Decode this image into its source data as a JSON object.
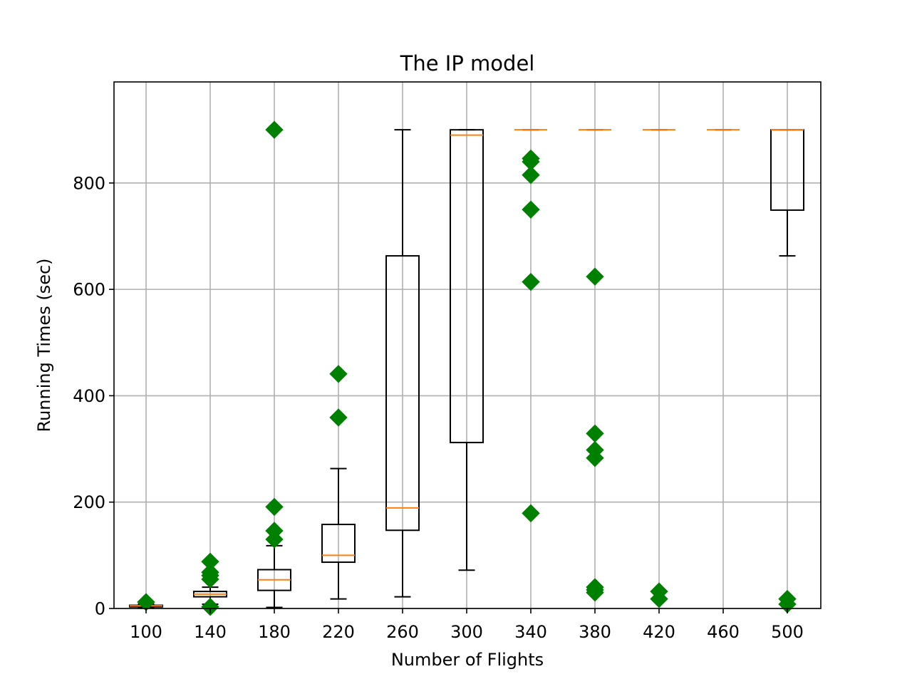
{
  "chart_data": {
    "type": "box",
    "title": "The IP model",
    "xlabel": "Number of Flights",
    "ylabel": "Running Times (sec)",
    "ylim": [
      0,
      990
    ],
    "yticks": [
      0,
      200,
      400,
      600,
      800
    ],
    "grid": true,
    "colors": {
      "box": "#000000",
      "median": "#ff7f0e",
      "flier": "#008000",
      "grid": "#b0b0b0"
    },
    "groups": [
      {
        "label": "100",
        "whisker_low": 2,
        "q1": 3,
        "median": 5,
        "q3": 6,
        "whisker_high": 8,
        "outliers": [
          12
        ]
      },
      {
        "label": "140",
        "whisker_low": 8,
        "q1": 22,
        "median": 27,
        "q3": 32,
        "whisker_high": 40,
        "outliers": [
          3,
          55,
          62,
          68,
          88
        ]
      },
      {
        "label": "180",
        "whisker_low": 2,
        "q1": 34,
        "median": 54,
        "q3": 73,
        "whisker_high": 118,
        "outliers": [
          130,
          146,
          191,
          900
        ]
      },
      {
        "label": "220",
        "whisker_low": 18,
        "q1": 87,
        "median": 100,
        "q3": 158,
        "whisker_high": 263,
        "outliers": [
          359,
          441
        ]
      },
      {
        "label": "260",
        "whisker_low": 22,
        "q1": 147,
        "median": 189,
        "q3": 663,
        "whisker_high": 900,
        "outliers": []
      },
      {
        "label": "300",
        "whisker_low": 72,
        "q1": 312,
        "median": 890,
        "q3": 900,
        "whisker_high": 900,
        "outliers": []
      },
      {
        "label": "340",
        "whisker_low": 900,
        "q1": 900,
        "median": 900,
        "q3": 900,
        "whisker_high": 900,
        "outliers": [
          179,
          614,
          750,
          815,
          840,
          846
        ]
      },
      {
        "label": "380",
        "whisker_low": 900,
        "q1": 900,
        "median": 900,
        "q3": 900,
        "whisker_high": 900,
        "outliers": [
          30,
          35,
          40,
          283,
          298,
          329,
          624
        ]
      },
      {
        "label": "420",
        "whisker_low": 900,
        "q1": 900,
        "median": 900,
        "q3": 900,
        "whisker_high": 900,
        "outliers": [
          18,
          32
        ]
      },
      {
        "label": "460",
        "whisker_low": 900,
        "q1": 900,
        "median": 900,
        "q3": 900,
        "whisker_high": 900,
        "outliers": []
      },
      {
        "label": "500",
        "whisker_low": 663,
        "q1": 749,
        "median": 900,
        "q3": 900,
        "whisker_high": 900,
        "outliers": [
          8,
          18
        ]
      }
    ]
  }
}
